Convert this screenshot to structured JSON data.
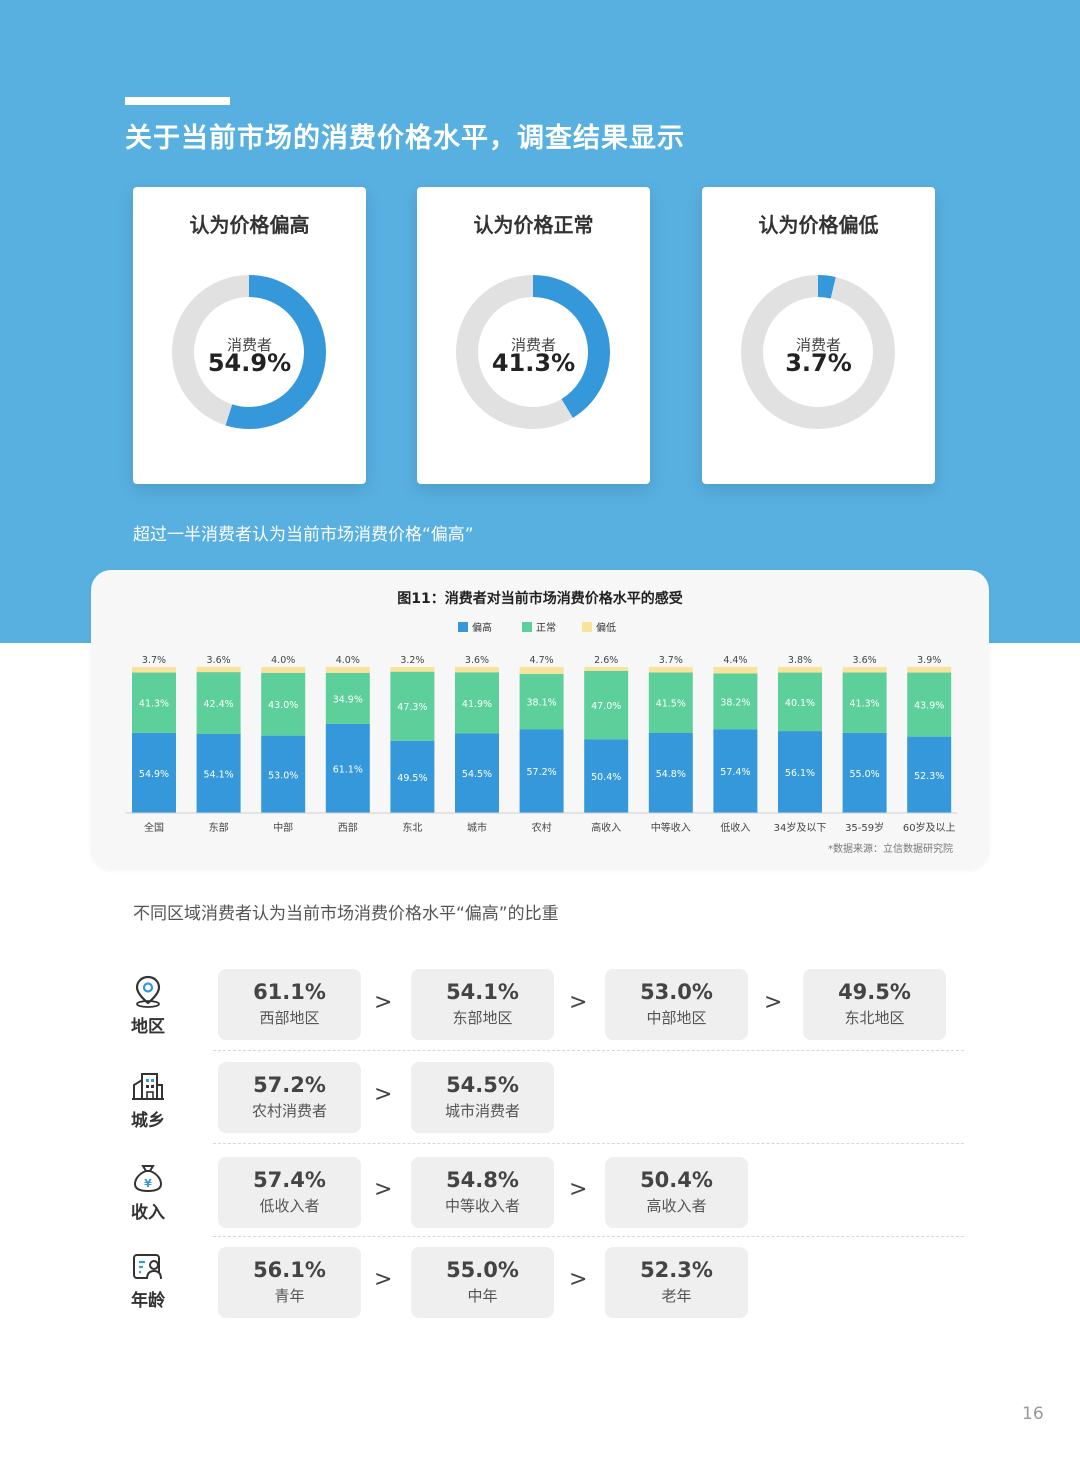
{
  "header": {
    "title": "关于当前市场的消费价格水平，调查结果显示"
  },
  "cards": [
    {
      "title": "认为价格偏高",
      "label": "消费者",
      "value": "54.9%",
      "percent": 54.9
    },
    {
      "title": "认为价格正常",
      "label": "消费者",
      "value": "41.3%",
      "percent": 41.3
    },
    {
      "title": "认为价格偏低",
      "label": "消费者",
      "value": "3.7%",
      "percent": 3.7
    }
  ],
  "subcaption": "超过一半消费者认为当前市场消费价格“偏高”",
  "colors": {
    "high": "#3498db",
    "normal": "#5ccf9b",
    "low": "#f9e29a",
    "donut_track": "#e1e1e1",
    "header_bg": "#58b0e1"
  },
  "chart_data": {
    "type": "bar",
    "stacked": true,
    "title": "图11：消费者对当前市场消费价格水平的感受",
    "legend_position": "top",
    "categories": [
      "全国",
      "东部",
      "中部",
      "西部",
      "东北",
      "城市",
      "农村",
      "高收入",
      "中等收入",
      "低收入",
      "34岁及以下",
      "35-59岁",
      "60岁及以上"
    ],
    "series": [
      {
        "name": "偏高",
        "values": [
          54.9,
          54.1,
          53.0,
          61.1,
          49.5,
          54.5,
          57.2,
          50.4,
          54.8,
          57.4,
          56.1,
          55.0,
          52.3
        ]
      },
      {
        "name": "正常",
        "values": [
          41.3,
          42.4,
          43.0,
          34.9,
          47.3,
          41.9,
          38.1,
          47.0,
          41.5,
          38.2,
          40.1,
          41.3,
          43.9
        ]
      },
      {
        "name": "偏低",
        "values": [
          3.7,
          3.6,
          4.0,
          4.0,
          3.2,
          3.6,
          4.7,
          2.6,
          3.7,
          4.4,
          3.8,
          3.6,
          3.9
        ]
      }
    ],
    "ylim": [
      0,
      100
    ],
    "grid": false,
    "source": "*数据来源：立信数据研究院"
  },
  "section_caption": "不同区域消费者认为当前市场消费价格水平“偏高”的比重",
  "comparison": {
    "separator": ">",
    "rows": [
      {
        "label": "地区",
        "icon": "location-pin-icon",
        "items": [
          {
            "value": "61.1%",
            "label": "西部地区"
          },
          {
            "value": "54.1%",
            "label": "东部地区"
          },
          {
            "value": "53.0%",
            "label": "中部地区"
          },
          {
            "value": "49.5%",
            "label": "东北地区"
          }
        ]
      },
      {
        "label": "城乡",
        "icon": "buildings-icon",
        "items": [
          {
            "value": "57.2%",
            "label": "农村消费者"
          },
          {
            "value": "54.5%",
            "label": "城市消费者"
          }
        ]
      },
      {
        "label": "收入",
        "icon": "money-bag-icon",
        "items": [
          {
            "value": "57.4%",
            "label": "低收入者"
          },
          {
            "value": "54.8%",
            "label": "中等收入者"
          },
          {
            "value": "50.4%",
            "label": "高收入者"
          }
        ]
      },
      {
        "label": "年龄",
        "icon": "id-card-icon",
        "items": [
          {
            "value": "56.1%",
            "label": "青年"
          },
          {
            "value": "55.0%",
            "label": "中年"
          },
          {
            "value": "52.3%",
            "label": "老年"
          }
        ]
      }
    ]
  },
  "page_number": "16"
}
